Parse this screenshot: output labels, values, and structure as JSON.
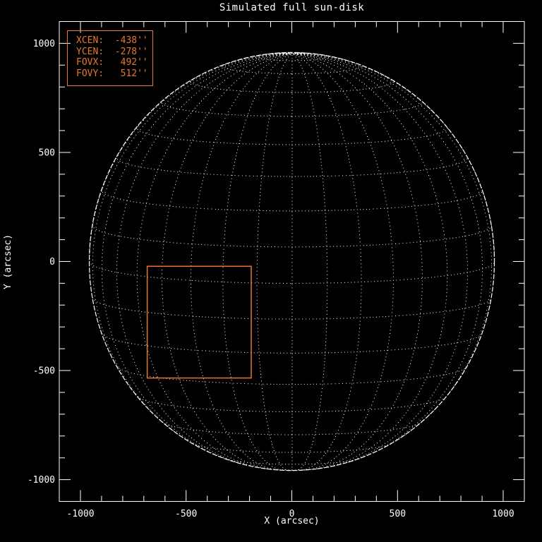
{
  "title": "Simulated full sun-disk",
  "axes": {
    "xlabel": "X (arcsec)",
    "ylabel": "Y (arcsec)"
  },
  "legend": {
    "lines": [
      "XCEN:  -438''",
      "YCEN:  -278''",
      "FOVX:   492''",
      "FOVY:   512''"
    ]
  },
  "colors": {
    "background": "#000000",
    "foreground": "#FFFFFF",
    "accent": "#E8762E"
  },
  "chart_data": {
    "type": "line",
    "title": "Simulated full sun-disk",
    "xlabel": "X (arcsec)",
    "ylabel": "Y (arcsec)",
    "xlim": [
      -1100,
      1100
    ],
    "ylim": [
      -1100,
      1100
    ],
    "xticks": [
      -1000,
      -500,
      0,
      500,
      1000
    ],
    "yticks": [
      -1000,
      -500,
      0,
      500,
      1000
    ],
    "minor_tick_step": 100,
    "grid": false,
    "solar_disk": {
      "radius_arcsec": 958,
      "b0_tilt_deg": 6,
      "grid_step_deg": 10,
      "lat_lines_deg": [
        -80,
        80
      ],
      "line_style": "dotted",
      "color": "#FFFFFF"
    },
    "fov_box": {
      "xcen": -438,
      "ycen": -278,
      "fovx": 492,
      "fovy": 512,
      "color": "#E8762E"
    }
  }
}
